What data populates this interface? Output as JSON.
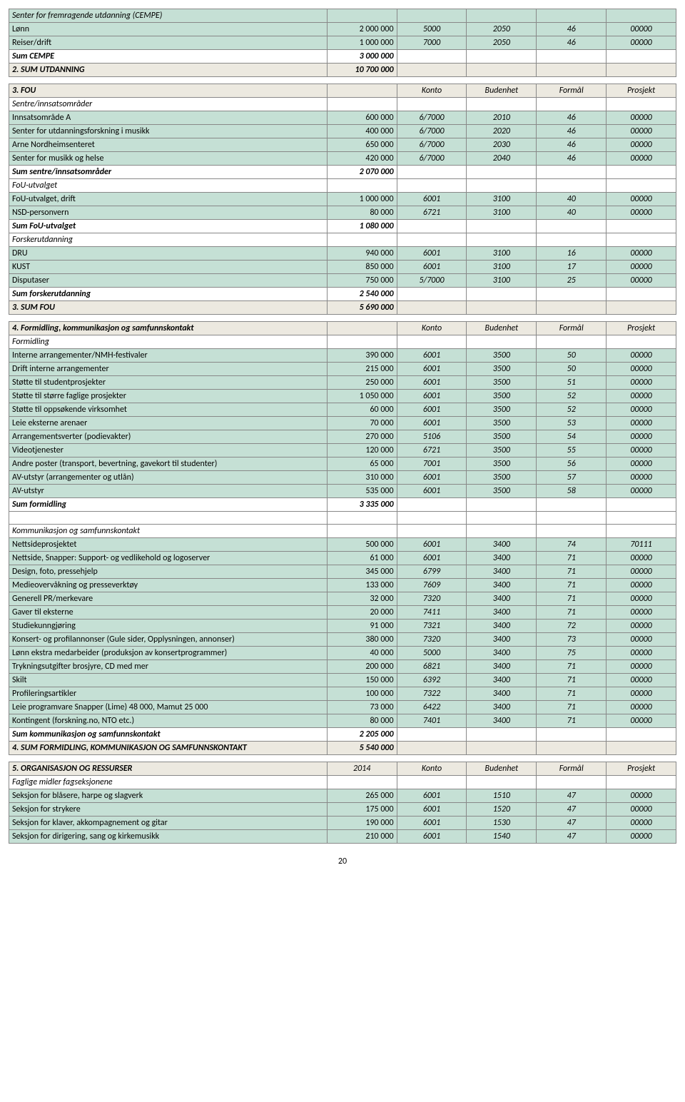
{
  "footer": "20",
  "colors": {
    "shade": "#c5e0d5",
    "grey": "#ece9e0",
    "border": "#888"
  },
  "rows": [
    {
      "cls": "shade ital",
      "c0": "Senter for fremragende utdanning (CEMPE)"
    },
    {
      "cls": "shade",
      "c0": "Lønn",
      "c1": "2 000 000",
      "c2": "5000",
      "c3": "2050",
      "c4": "46",
      "c5": "00000"
    },
    {
      "cls": "shade",
      "c0": "Reiser/drift",
      "c1": "1 000 000",
      "c2": "7000",
      "c3": "2050",
      "c4": "46",
      "c5": "00000"
    },
    {
      "cls": "sum",
      "c0": "Sum CEMPE",
      "c1": "3 000 000"
    },
    {
      "cls": "grey sum",
      "c0": "2. SUM UTDANNING",
      "c1": "10 700 000"
    },
    {
      "blank": true
    },
    {
      "cls": "grey",
      "c0b": "3. FOU",
      "c2": "Konto",
      "c3": "Budenhet",
      "c4": "Formål",
      "c5": "Prosjekt",
      "hdr": true
    },
    {
      "cls": "ital",
      "c0": "Sentre/innsatsområder"
    },
    {
      "cls": "shade",
      "c0": "Innsatsområde A",
      "c1": "600 000",
      "c2": "6/7000",
      "c3": "2010",
      "c4": "46",
      "c5": "00000"
    },
    {
      "cls": "shade",
      "c0": "Senter for utdanningsforskning i musikk",
      "c1": "400 000",
      "c2": "6/7000",
      "c3": "2020",
      "c4": "46",
      "c5": "00000"
    },
    {
      "cls": "shade",
      "c0": "Arne Nordheimsenteret",
      "c1": "650 000",
      "c2": "6/7000",
      "c3": "2030",
      "c4": "46",
      "c5": "00000"
    },
    {
      "cls": "shade",
      "c0": "Senter for musikk og helse",
      "c1": "420 000",
      "c2": "6/7000",
      "c3": "2040",
      "c4": "46",
      "c5": "00000"
    },
    {
      "cls": "sum",
      "c0": "Sum sentre/innsatsområder",
      "c1": "2 070 000"
    },
    {
      "cls": "ital",
      "c0": "FoU-utvalget"
    },
    {
      "cls": "shade",
      "c0": "FoU-utvalget, drift",
      "c1": "1 000 000",
      "c2": "6001",
      "c3": "3100",
      "c4": "40",
      "c5": "00000"
    },
    {
      "cls": "shade",
      "c0": "NSD-personvern",
      "c1": "80 000",
      "c2": "6721",
      "c3": "3100",
      "c4": "40",
      "c5": "00000"
    },
    {
      "cls": "sum",
      "c0": "Sum FoU-utvalget",
      "c1": "1 080 000"
    },
    {
      "cls": "ital",
      "c0": "Forskerutdanning"
    },
    {
      "cls": "shade",
      "c0": "DRU",
      "c1": "940 000",
      "c2": "6001",
      "c3": "3100",
      "c4": "16",
      "c5": "00000"
    },
    {
      "cls": "shade",
      "c0": "KUST",
      "c1": "850 000",
      "c2": "6001",
      "c3": "3100",
      "c4": "17",
      "c5": "00000"
    },
    {
      "cls": "shade",
      "c0": "Disputaser",
      "c1": "750 000",
      "c2": "5/7000",
      "c3": "3100",
      "c4": "25",
      "c5": "00000"
    },
    {
      "cls": "sum",
      "c0": "Sum forskerutdanning",
      "c1": "2 540 000"
    },
    {
      "cls": "grey sum",
      "c0": "3. SUM FOU",
      "c1": "5 690 000"
    },
    {
      "blank": true
    },
    {
      "cls": "grey",
      "c0b": "4. Formidling, kommunikasjon og samfunnskontakt",
      "c2": "Konto",
      "c3": "Budenhet",
      "c4": "Formål",
      "c5": "Prosjekt",
      "hdr": true
    },
    {
      "cls": "ital",
      "c0": "Formidling"
    },
    {
      "cls": "shade",
      "c0": "Interne arrangementer/NMH-festivaler",
      "c1": "390 000",
      "c2": "6001",
      "c3": "3500",
      "c4": "50",
      "c5": "00000"
    },
    {
      "cls": "shade",
      "c0": "Drift interne arrangementer",
      "c1": "215 000",
      "c2": "6001",
      "c3": "3500",
      "c4": "50",
      "c5": "00000"
    },
    {
      "cls": "shade",
      "c0": "Støtte til studentprosjekter",
      "c1": "250 000",
      "c2": "6001",
      "c3": "3500",
      "c4": "51",
      "c5": "00000"
    },
    {
      "cls": "shade",
      "c0": "Støtte til større faglige prosjekter",
      "c1": "1 050 000",
      "c2": "6001",
      "c3": "3500",
      "c4": "52",
      "c5": "00000"
    },
    {
      "cls": "shade",
      "c0": "Støtte til oppsøkende virksomhet",
      "c1": "60 000",
      "c2": "6001",
      "c3": "3500",
      "c4": "52",
      "c5": "00000"
    },
    {
      "cls": "shade",
      "c0": "Leie eksterne arenaer",
      "c1": "70 000",
      "c2": "6001",
      "c3": "3500",
      "c4": "53",
      "c5": "00000"
    },
    {
      "cls": "shade",
      "c0": "Arrangementsverter (podievakter)",
      "c1": "270 000",
      "c2": "5106",
      "c3": "3500",
      "c4": "54",
      "c5": "00000"
    },
    {
      "cls": "shade",
      "c0": "Videotjenester",
      "c1": "120 000",
      "c2": "6721",
      "c3": "3500",
      "c4": "55",
      "c5": "00000"
    },
    {
      "cls": "shade",
      "c0": "Andre poster (transport, bevertning, gavekort til studenter)",
      "c1": "65 000",
      "c2": "7001",
      "c3": "3500",
      "c4": "56",
      "c5": "00000"
    },
    {
      "cls": "shade",
      "c0": "AV-utstyr (arrangementer og utlån)",
      "c1": "310 000",
      "c2": "6001",
      "c3": "3500",
      "c4": "57",
      "c5": "00000"
    },
    {
      "cls": "shade",
      "c0": "AV-utstyr",
      "c1": "535 000",
      "c2": "6001",
      "c3": "3500",
      "c4": "58",
      "c5": "00000"
    },
    {
      "cls": "sum",
      "c0": "Sum formidling",
      "c1": "3 335 000"
    },
    {
      "blank2": true
    },
    {
      "cls": "ital",
      "c0": "Kommunikasjon og samfunnskontakt"
    },
    {
      "cls": "shade",
      "c0": "Nettsideprosjektet",
      "c1": "500 000",
      "c2": "6001",
      "c3": "3400",
      "c4": "74",
      "c5": "70111"
    },
    {
      "cls": "shade",
      "c0": "Nettside, Snapper: Support- og vedlikehold og logoserver",
      "c1": "61 000",
      "c2": "6001",
      "c3": "3400",
      "c4": "71",
      "c5": "00000"
    },
    {
      "cls": "shade",
      "c0": "Design, foto, pressehjelp",
      "c1": "345 000",
      "c2": "6799",
      "c3": "3400",
      "c4": "71",
      "c5": "00000"
    },
    {
      "cls": "shade",
      "c0": "Medieovervåkning og presseverktøy",
      "c1": "133 000",
      "c2": "7609",
      "c3": "3400",
      "c4": "71",
      "c5": "00000"
    },
    {
      "cls": "shade",
      "c0": "Generell PR/merkevare",
      "c1": "32 000",
      "c2": "7320",
      "c3": "3400",
      "c4": "71",
      "c5": "00000"
    },
    {
      "cls": "shade",
      "c0": "Gaver til eksterne",
      "c1": "20 000",
      "c2": "7411",
      "c3": "3400",
      "c4": "71",
      "c5": "00000"
    },
    {
      "cls": "shade",
      "c0": "Studiekunngjøring",
      "c1": "91 000",
      "c2": "7321",
      "c3": "3400",
      "c4": "72",
      "c5": "00000"
    },
    {
      "cls": "shade",
      "c0": "Konsert- og profilannonser (Gule sider, Opplysningen, annonser)",
      "c1": "380 000",
      "c2": "7320",
      "c3": "3400",
      "c4": "73",
      "c5": "00000"
    },
    {
      "cls": "shade",
      "c0": "Lønn ekstra medarbeider (produksjon av konsertprogrammer)",
      "c1": "40 000",
      "c2": "5000",
      "c3": "3400",
      "c4": "75",
      "c5": "00000"
    },
    {
      "cls": "shade",
      "c0": "Trykningsutgifter brosjyre, CD med mer",
      "c1": "200 000",
      "c2": "6821",
      "c3": "3400",
      "c4": "71",
      "c5": "00000"
    },
    {
      "cls": "shade",
      "c0": "Skilt",
      "c1": "150 000",
      "c2": "6392",
      "c3": "3400",
      "c4": "71",
      "c5": "00000"
    },
    {
      "cls": "shade",
      "c0": "Profileringsartikler",
      "c1": "100 000",
      "c2": "7322",
      "c3": "3400",
      "c4": "71",
      "c5": "00000"
    },
    {
      "cls": "shade",
      "c0": "Leie programvare Snapper (Lime) 48 000, Mamut 25 000",
      "c1": "73 000",
      "c2": "6422",
      "c3": "3400",
      "c4": "71",
      "c5": "00000"
    },
    {
      "cls": "shade",
      "c0": "Kontingent (forskning.no, NTO etc.)",
      "c1": "80 000",
      "c2": "7401",
      "c3": "3400",
      "c4": "71",
      "c5": "00000"
    },
    {
      "cls": "sum",
      "c0": "Sum kommunikasjon og samfunnskontakt",
      "c1": "2 205 000"
    },
    {
      "cls": "grey sum",
      "c0": "4. SUM FORMIDLING, KOMMUNIKASJON OG SAMFUNNSKONTAKT",
      "c1": "5 540 000"
    },
    {
      "blank": true
    },
    {
      "cls": "grey",
      "c0b": "5. ORGANISASJON OG RESSURSER",
      "c1i": "2014",
      "c2": "Konto",
      "c3": "Budenhet",
      "c4": "Formål",
      "c5": "Prosjekt",
      "hdr": true
    },
    {
      "cls": "ital",
      "c0": "Faglige midler fagseksjonene"
    },
    {
      "cls": "shade",
      "c0": "Seksjon for blåsere, harpe og slagverk",
      "c1": "265 000",
      "c2": "6001",
      "c3": "1510",
      "c4": "47",
      "c5": "00000"
    },
    {
      "cls": "shade",
      "c0": "Seksjon for strykere",
      "c1": "175 000",
      "c2": "6001",
      "c3": "1520",
      "c4": "47",
      "c5": "00000"
    },
    {
      "cls": "shade",
      "c0": "Seksjon for klaver, akkompagnement og gitar",
      "c1": "190 000",
      "c2": "6001",
      "c3": "1530",
      "c4": "47",
      "c5": "00000"
    },
    {
      "cls": "shade",
      "c0": "Seksjon for dirigering, sang og kirkemusikk",
      "c1": "210 000",
      "c2": "6001",
      "c3": "1540",
      "c4": "47",
      "c5": "00000"
    }
  ]
}
